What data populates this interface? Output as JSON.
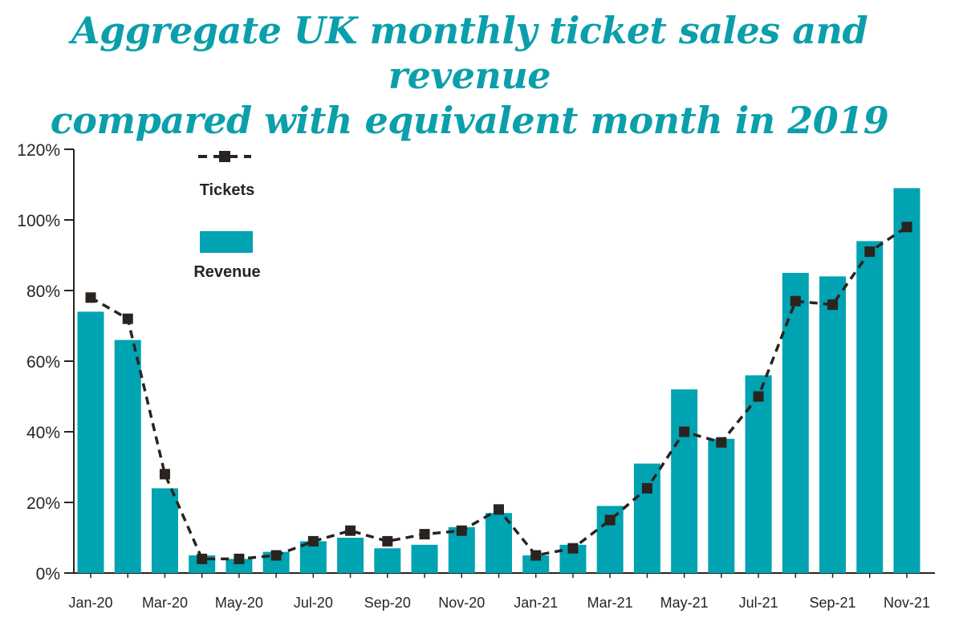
{
  "title_line1": "Aggregate UK monthly ticket sales and revenue",
  "title_line2": "compared with equivalent month in 2019",
  "colors": {
    "revenue": "#00a3b1",
    "tickets": "#2a2320",
    "title": "#0a9fab"
  },
  "chart_data": {
    "type": "bar",
    "title": "Aggregate UK monthly ticket sales and revenue compared with equivalent month in 2019",
    "xlabel": "",
    "ylabel": "",
    "ylim": [
      0,
      120
    ],
    "yticks": [
      "0%",
      "20%",
      "40%",
      "60%",
      "80%",
      "100%",
      "120%"
    ],
    "grid": false,
    "legend_position": "top-left",
    "categories": [
      "Jan-20",
      "Feb-20",
      "Mar-20",
      "Apr-20",
      "May-20",
      "Jun-20",
      "Jul-20",
      "Aug-20",
      "Sep-20",
      "Oct-20",
      "Nov-20",
      "Dec-20",
      "Jan-21",
      "Feb-21",
      "Mar-21",
      "Apr-21",
      "May-21",
      "Jun-21",
      "Jul-21",
      "Aug-21",
      "Sep-21",
      "Oct-21",
      "Nov-21"
    ],
    "xtick_labels": [
      "Jan-20",
      "Mar-20",
      "May-20",
      "Jul-20",
      "Sep-20",
      "Nov-20",
      "Jan-21",
      "Mar-21",
      "May-21",
      "Jul-21",
      "Sep-21",
      "Nov-21"
    ],
    "series": [
      {
        "name": "Revenue",
        "type": "bar",
        "values": [
          74,
          66,
          24,
          5,
          4,
          6,
          9,
          10,
          7,
          8,
          13,
          17,
          5,
          8,
          19,
          31,
          52,
          38,
          56,
          85,
          84,
          94,
          109
        ]
      },
      {
        "name": "Tickets",
        "type": "line",
        "style": "dashed-square-markers",
        "values": [
          78,
          72,
          28,
          4,
          4,
          5,
          9,
          12,
          9,
          11,
          12,
          18,
          5,
          7,
          15,
          24,
          40,
          37,
          50,
          77,
          76,
          91,
          98
        ]
      }
    ]
  }
}
